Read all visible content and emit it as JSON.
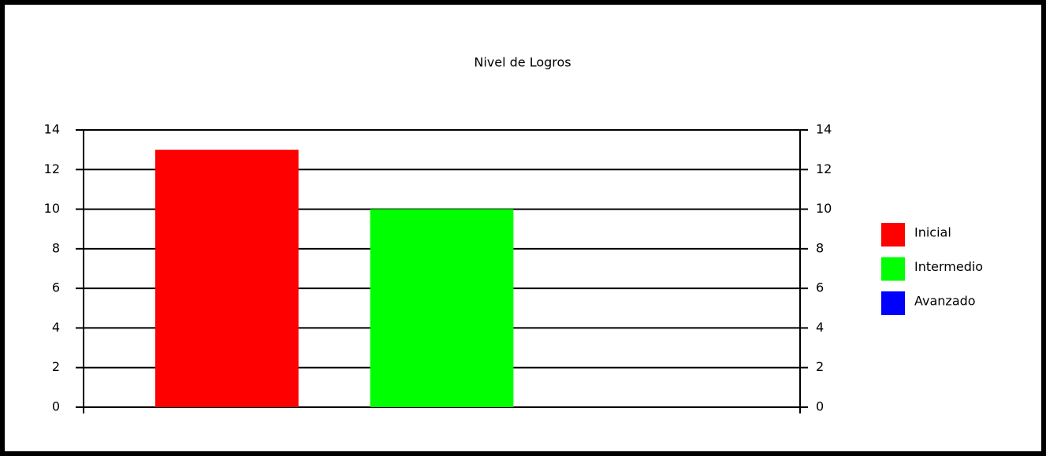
{
  "chart_data": {
    "type": "bar",
    "title": "Nivel de Logros",
    "categories": [
      null
    ],
    "series": [
      {
        "name": "Inicial",
        "color": "#ff0000",
        "values": [
          13
        ]
      },
      {
        "name": "Intermedio",
        "color": "#00ff00",
        "values": [
          10
        ]
      },
      {
        "name": "Avanzado",
        "color": "#0000ff",
        "values": [
          0
        ]
      }
    ],
    "ylim": [
      0,
      14
    ],
    "yticks": [
      0,
      2,
      4,
      6,
      8,
      10,
      12,
      14
    ],
    "y2lim": [
      0,
      14
    ],
    "y2ticks": [
      0,
      2,
      4,
      6,
      8,
      10,
      12,
      14
    ],
    "grid": true,
    "legend": "right"
  }
}
